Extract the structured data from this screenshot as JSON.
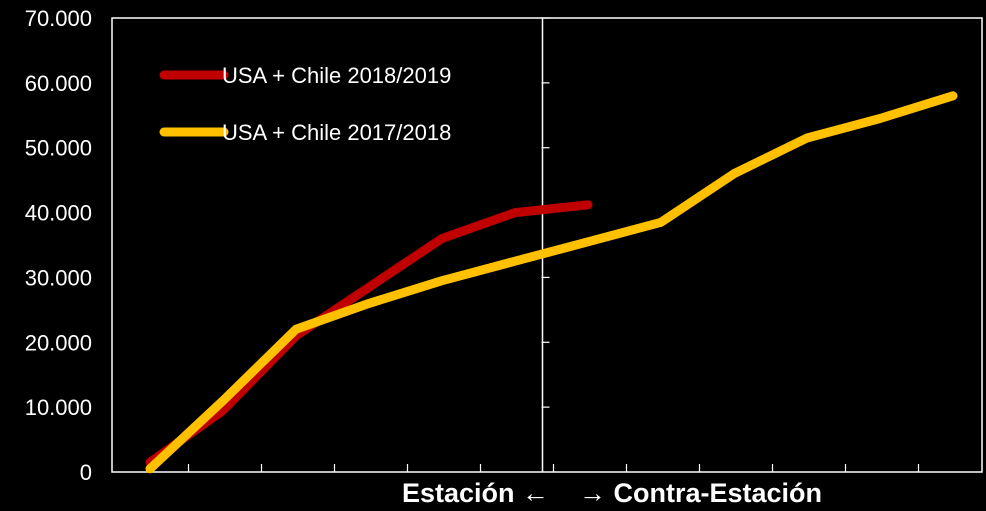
{
  "chart_data": {
    "type": "line",
    "title": "",
    "xlabel": "Estación ←    → Contra-Estación",
    "ylabel": "",
    "ylim": [
      0,
      70000
    ],
    "y_ticks": [
      0,
      10000,
      20000,
      30000,
      40000,
      50000,
      60000,
      70000
    ],
    "y_tick_labels": [
      "0",
      "10.000",
      "20.000",
      "30.000",
      "40.000",
      "50.000",
      "60.000",
      "70.000"
    ],
    "x_count": 12,
    "season_divider_after_index": 5,
    "grid": false,
    "legend_position": "top-left",
    "series": [
      {
        "name": "USA + Chile 2018/2019",
        "color": "#C00000",
        "values": [
          1500,
          9500,
          21000,
          28500,
          36000,
          40000,
          41200,
          null,
          null,
          null,
          null,
          null
        ]
      },
      {
        "name": "USA + Chile 2017/2018",
        "color": "#FFC000",
        "values": [
          500,
          11000,
          22000,
          26000,
          29500,
          32500,
          35500,
          38500,
          46000,
          51500,
          54500,
          58000
        ]
      }
    ]
  }
}
